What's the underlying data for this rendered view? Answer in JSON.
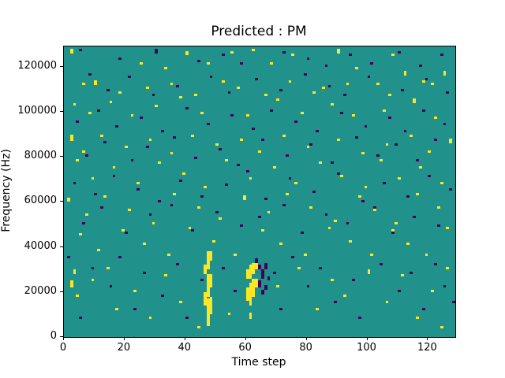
{
  "title": "Predicted : PM",
  "xlabel": "Time step",
  "ylabel": "Frequency (Hz)",
  "chart_data": {
    "type": "heatmap",
    "title": "Predicted : PM",
    "xlabel": "Time step",
    "ylabel": "Frequency (Hz)",
    "x_bins": 129,
    "y_bins": 129,
    "x_range": [
      0,
      129
    ],
    "y_range_hz": [
      0,
      129000
    ],
    "grid": false,
    "legend": "none",
    "colors": {
      "background_mid": "#21918c",
      "high_yellow": "#fde725",
      "low_purple": "#440154",
      "figure_bg": "#ffffff",
      "axis": "#000000"
    },
    "x_ticks": {
      "values": [
        0,
        20,
        40,
        60,
        80,
        100,
        120
      ],
      "labels": [
        "0",
        "20",
        "40",
        "60",
        "80",
        "100",
        "120"
      ]
    },
    "y_ticks": {
      "values": [
        0,
        20000,
        40000,
        60000,
        80000,
        100000,
        120000
      ],
      "labels": [
        "0",
        "20000",
        "40000",
        "60000",
        "80000",
        "100000",
        "120000"
      ]
    },
    "yellow_cells": [
      [
        2,
        126,
        2
      ],
      [
        25,
        121,
        1
      ],
      [
        33,
        119,
        1
      ],
      [
        40,
        125,
        2
      ],
      [
        47,
        121,
        1
      ],
      [
        55,
        126,
        1
      ],
      [
        62,
        127,
        1
      ],
      [
        68,
        121,
        1
      ],
      [
        75,
        125,
        1
      ],
      [
        90,
        126,
        2
      ],
      [
        96,
        119,
        1
      ],
      [
        108,
        125,
        1
      ],
      [
        112,
        116,
        2
      ],
      [
        118,
        113,
        1
      ],
      [
        125,
        116,
        2
      ],
      [
        6,
        112,
        1
      ],
      [
        10,
        112,
        2
      ],
      [
        18,
        108,
        1
      ],
      [
        27,
        110,
        1
      ],
      [
        35,
        112,
        1
      ],
      [
        43,
        107,
        1
      ],
      [
        52,
        113,
        1
      ],
      [
        57,
        110,
        1
      ],
      [
        66,
        107,
        1
      ],
      [
        74,
        113,
        1
      ],
      [
        82,
        108,
        1
      ],
      [
        85,
        110,
        1
      ],
      [
        93,
        112,
        1
      ],
      [
        103,
        112,
        1
      ],
      [
        107,
        107,
        1
      ],
      [
        115,
        104,
        2
      ],
      [
        121,
        112,
        1
      ],
      [
        3,
        103,
        1
      ],
      [
        8,
        99,
        1
      ],
      [
        15,
        104,
        1
      ],
      [
        22,
        98,
        1
      ],
      [
        30,
        102,
        1
      ],
      [
        38,
        106,
        1
      ],
      [
        45,
        99,
        1
      ],
      [
        60,
        98,
        1
      ],
      [
        70,
        105,
        1
      ],
      [
        78,
        99,
        1
      ],
      [
        88,
        103,
        1
      ],
      [
        95,
        98,
        1
      ],
      [
        105,
        100,
        1
      ],
      [
        122,
        97,
        1
      ],
      [
        2,
        87,
        3
      ],
      [
        6,
        82,
        1
      ],
      [
        12,
        89,
        1
      ],
      [
        20,
        84,
        1
      ],
      [
        28,
        87,
        1
      ],
      [
        35,
        81,
        1
      ],
      [
        42,
        89,
        1
      ],
      [
        50,
        85,
        1
      ],
      [
        58,
        87,
        1
      ],
      [
        64,
        82,
        1
      ],
      [
        72,
        89,
        1
      ],
      [
        80,
        84,
        1
      ],
      [
        90,
        87,
        1
      ],
      [
        98,
        81,
        1
      ],
      [
        106,
        85,
        1
      ],
      [
        114,
        89,
        1
      ],
      [
        120,
        82,
        1
      ],
      [
        127,
        86,
        2
      ],
      [
        4,
        78,
        1
      ],
      [
        9,
        70,
        1
      ],
      [
        16,
        75,
        1
      ],
      [
        24,
        68,
        1
      ],
      [
        31,
        77,
        1
      ],
      [
        39,
        72,
        1
      ],
      [
        46,
        66,
        1
      ],
      [
        53,
        78,
        1
      ],
      [
        61,
        70,
        1
      ],
      [
        69,
        75,
        1
      ],
      [
        76,
        68,
        1
      ],
      [
        84,
        77,
        1
      ],
      [
        91,
        71,
        1
      ],
      [
        99,
        66,
        1
      ],
      [
        104,
        78,
        1
      ],
      [
        110,
        70,
        1
      ],
      [
        117,
        75,
        1
      ],
      [
        124,
        68,
        1
      ],
      [
        1,
        60,
        2
      ],
      [
        7,
        54,
        1
      ],
      [
        13,
        62,
        1
      ],
      [
        21,
        56,
        1
      ],
      [
        29,
        50,
        1
      ],
      [
        36,
        63,
        1
      ],
      [
        44,
        57,
        1
      ],
      [
        51,
        52,
        1
      ],
      [
        59,
        61,
        2
      ],
      [
        67,
        55,
        1
      ],
      [
        73,
        63,
        1
      ],
      [
        81,
        57,
        1
      ],
      [
        89,
        51,
        1
      ],
      [
        97,
        62,
        1
      ],
      [
        102,
        56,
        1
      ],
      [
        109,
        50,
        1
      ],
      [
        116,
        63,
        1
      ],
      [
        123,
        57,
        1
      ],
      [
        5,
        45,
        1
      ],
      [
        11,
        38,
        1
      ],
      [
        19,
        47,
        1
      ],
      [
        26,
        41,
        1
      ],
      [
        34,
        36,
        1
      ],
      [
        41,
        48,
        1
      ],
      [
        49,
        42,
        1
      ],
      [
        56,
        36,
        1
      ],
      [
        65,
        47,
        1
      ],
      [
        71,
        41,
        1
      ],
      [
        79,
        36,
        1
      ],
      [
        87,
        48,
        1
      ],
      [
        94,
        42,
        1
      ],
      [
        101,
        36,
        1
      ],
      [
        108,
        47,
        1
      ],
      [
        113,
        41,
        1
      ],
      [
        119,
        36,
        1
      ],
      [
        126,
        48,
        1
      ],
      [
        3,
        28,
        2
      ],
      [
        2,
        22,
        3
      ],
      [
        4,
        18,
        1
      ],
      [
        9,
        25,
        1
      ],
      [
        14,
        30,
        1
      ],
      [
        17,
        12,
        1
      ],
      [
        23,
        20,
        1
      ],
      [
        28,
        8,
        1
      ],
      [
        33,
        27,
        1
      ],
      [
        38,
        15,
        1
      ],
      [
        44,
        4,
        1
      ],
      [
        54,
        10,
        1
      ],
      [
        70,
        22,
        1
      ],
      [
        77,
        30,
        1
      ],
      [
        83,
        12,
        1
      ],
      [
        88,
        25,
        1
      ],
      [
        92,
        18,
        1
      ],
      [
        100,
        28,
        2
      ],
      [
        106,
        15,
        1
      ],
      [
        111,
        27,
        1
      ],
      [
        116,
        8,
        1
      ],
      [
        121,
        20,
        1
      ],
      [
        126,
        30,
        1
      ],
      [
        124,
        4,
        1
      ],
      [
        46,
        14,
        6
      ],
      [
        47,
        5,
        12
      ],
      [
        47,
        18,
        10
      ],
      [
        48,
        10,
        8
      ],
      [
        48,
        22,
        6
      ],
      [
        47,
        30,
        8
      ],
      [
        48,
        34,
        4
      ],
      [
        46,
        28,
        4
      ],
      [
        60,
        16,
        6
      ],
      [
        61,
        14,
        10
      ],
      [
        62,
        18,
        8
      ],
      [
        61,
        26,
        6
      ],
      [
        62,
        28,
        5
      ],
      [
        63,
        22,
        4
      ],
      [
        60,
        26,
        4
      ],
      [
        61,
        8,
        3
      ],
      [
        63,
        30,
        3
      ]
    ],
    "purple_cells": [
      [
        5,
        127,
        1
      ],
      [
        18,
        123,
        1
      ],
      [
        30,
        126,
        2
      ],
      [
        44,
        122,
        1
      ],
      [
        52,
        125,
        1
      ],
      [
        58,
        121,
        1
      ],
      [
        72,
        126,
        1
      ],
      [
        80,
        123,
        1
      ],
      [
        86,
        120,
        1
      ],
      [
        94,
        125,
        1
      ],
      [
        101,
        121,
        1
      ],
      [
        110,
        126,
        1
      ],
      [
        117,
        120,
        1
      ],
      [
        124,
        125,
        1
      ],
      [
        8,
        116,
        1
      ],
      [
        14,
        109,
        1
      ],
      [
        21,
        115,
        1
      ],
      [
        29,
        107,
        1
      ],
      [
        37,
        111,
        1
      ],
      [
        48,
        115,
        1
      ],
      [
        54,
        108,
        1
      ],
      [
        63,
        114,
        1
      ],
      [
        71,
        109,
        1
      ],
      [
        79,
        116,
        1
      ],
      [
        87,
        111,
        1
      ],
      [
        92,
        107,
        1
      ],
      [
        100,
        115,
        1
      ],
      [
        111,
        109,
        1
      ],
      [
        119,
        114,
        1
      ],
      [
        126,
        108,
        1
      ],
      [
        4,
        95,
        1
      ],
      [
        11,
        100,
        1
      ],
      [
        17,
        93,
        1
      ],
      [
        25,
        97,
        1
      ],
      [
        32,
        91,
        1
      ],
      [
        40,
        101,
        1
      ],
      [
        47,
        94,
        1
      ],
      [
        55,
        98,
        1
      ],
      [
        62,
        92,
        1
      ],
      [
        68,
        100,
        1
      ],
      [
        76,
        95,
        1
      ],
      [
        83,
        91,
        1
      ],
      [
        91,
        99,
        1
      ],
      [
        99,
        93,
        1
      ],
      [
        107,
        97,
        1
      ],
      [
        112,
        91,
        1
      ],
      [
        118,
        100,
        1
      ],
      [
        125,
        94,
        1
      ],
      [
        7,
        80,
        1
      ],
      [
        13,
        86,
        1
      ],
      [
        22,
        78,
        1
      ],
      [
        27,
        84,
        1
      ],
      [
        36,
        88,
        1
      ],
      [
        43,
        79,
        1
      ],
      [
        51,
        83,
        1
      ],
      [
        57,
        76,
        1
      ],
      [
        65,
        87,
        1
      ],
      [
        73,
        80,
        1
      ],
      [
        81,
        85,
        1
      ],
      [
        88,
        77,
        1
      ],
      [
        96,
        88,
        1
      ],
      [
        103,
        80,
        1
      ],
      [
        109,
        85,
        1
      ],
      [
        116,
        78,
        1
      ],
      [
        122,
        87,
        1
      ],
      [
        3,
        68,
        1
      ],
      [
        10,
        63,
        1
      ],
      [
        16,
        71,
        1
      ],
      [
        24,
        65,
        1
      ],
      [
        31,
        60,
        1
      ],
      [
        38,
        69,
        1
      ],
      [
        45,
        62,
        1
      ],
      [
        53,
        67,
        1
      ],
      [
        60,
        73,
        1
      ],
      [
        66,
        61,
        1
      ],
      [
        74,
        70,
        1
      ],
      [
        82,
        64,
        1
      ],
      [
        90,
        72,
        1
      ],
      [
        98,
        60,
        1
      ],
      [
        105,
        68,
        1
      ],
      [
        113,
        62,
        1
      ],
      [
        120,
        71,
        1
      ],
      [
        127,
        65,
        1
      ],
      [
        6,
        50,
        1
      ],
      [
        12,
        57,
        1
      ],
      [
        20,
        46,
        1
      ],
      [
        28,
        54,
        1
      ],
      [
        35,
        58,
        1
      ],
      [
        42,
        47,
        1
      ],
      [
        50,
        55,
        1
      ],
      [
        58,
        49,
        1
      ],
      [
        64,
        53,
        1
      ],
      [
        72,
        58,
        1
      ],
      [
        78,
        46,
        1
      ],
      [
        86,
        54,
        1
      ],
      [
        93,
        50,
        1
      ],
      [
        102,
        57,
        1
      ],
      [
        108,
        46,
        1
      ],
      [
        115,
        53,
        1
      ],
      [
        123,
        49,
        1
      ],
      [
        64,
        22,
        3
      ],
      [
        65,
        26,
        4
      ],
      [
        66,
        30,
        3
      ],
      [
        64,
        30,
        2
      ],
      [
        66,
        21,
        2
      ],
      [
        67,
        25,
        2
      ],
      [
        63,
        33,
        2
      ],
      [
        65,
        19,
        2
      ],
      [
        1,
        35,
        1
      ],
      [
        5,
        8,
        1
      ],
      [
        9,
        30,
        1
      ],
      [
        15,
        22,
        1
      ],
      [
        18,
        35,
        1
      ],
      [
        23,
        12,
        1
      ],
      [
        26,
        28,
        1
      ],
      [
        32,
        18,
        1
      ],
      [
        37,
        32,
        1
      ],
      [
        40,
        8,
        1
      ],
      [
        45,
        25,
        1
      ],
      [
        52,
        30,
        1
      ],
      [
        56,
        20,
        1
      ],
      [
        69,
        28,
        1
      ],
      [
        71,
        12,
        1
      ],
      [
        75,
        35,
        1
      ],
      [
        80,
        22,
        1
      ],
      [
        84,
        30,
        1
      ],
      [
        89,
        15,
        1
      ],
      [
        95,
        25,
        1
      ],
      [
        97,
        8,
        1
      ],
      [
        104,
        32,
        1
      ],
      [
        110,
        20,
        1
      ],
      [
        114,
        28,
        1
      ],
      [
        118,
        12,
        1
      ],
      [
        122,
        32,
        1
      ],
      [
        125,
        22,
        1
      ],
      [
        128,
        15,
        1
      ]
    ]
  }
}
